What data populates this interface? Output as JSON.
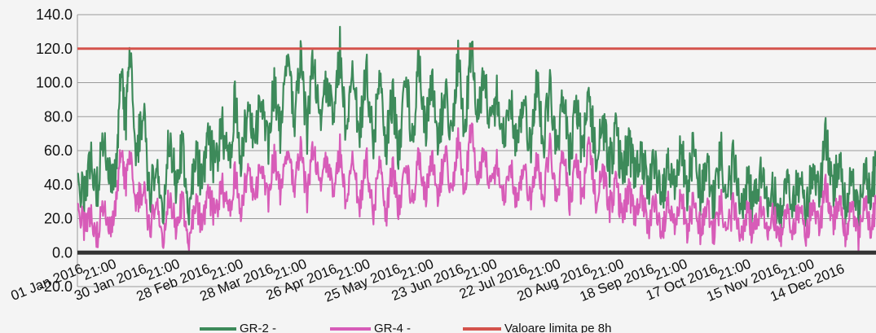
{
  "chart_data": {
    "type": "line",
    "ylim": [
      -20,
      140
    ],
    "y_ticks": [
      "140.0",
      "120.0",
      "100.0",
      "80.0",
      "60.0",
      "40.0",
      "20.0",
      "0.0",
      "-20.0"
    ],
    "x_range": [
      "2016-01-01",
      "2016-12-31"
    ],
    "x_major_ticks": [
      {
        "date": "2016-01-01",
        "label": "01 Jan 2016"
      },
      {
        "date": "2016-01-30",
        "label": "30 Jan 2016"
      },
      {
        "date": "2016-02-28",
        "label": "28 Feb 2016"
      },
      {
        "date": "2016-03-28",
        "label": "28 Mar 2016"
      },
      {
        "date": "2016-04-26",
        "label": "26 Apr 2016"
      },
      {
        "date": "2016-05-25",
        "label": "25 May 2016"
      },
      {
        "date": "2016-06-23",
        "label": "23 Jun 2016"
      },
      {
        "date": "2016-07-22",
        "label": "22 Jul 2016"
      },
      {
        "date": "2016-08-20",
        "label": "20 Aug 2016"
      },
      {
        "date": "2016-09-18",
        "label": "18 Sep 2016"
      },
      {
        "date": "2016-10-17",
        "label": "17 Oct 2016"
      },
      {
        "date": "2016-11-15",
        "label": "15 Nov 2016"
      },
      {
        "date": "2016-12-14",
        "label": "14 Dec 2016"
      }
    ],
    "x_minor_label": "21:00",
    "grid": true,
    "legend_position": "bottom",
    "colors": {
      "gr2": "#3d8a5a",
      "gr4": "#d75cb8",
      "limit": "#d4534c",
      "axis": "#333333"
    },
    "series": [
      {
        "name": "GR-2 -",
        "key": "gr2",
        "points": [
          [
            "2016-01-01",
            45
          ],
          [
            "2016-01-04",
            30
          ],
          [
            "2016-01-07",
            60
          ],
          [
            "2016-01-10",
            38
          ],
          [
            "2016-01-13",
            70
          ],
          [
            "2016-01-16",
            42
          ],
          [
            "2016-01-19",
            55
          ],
          [
            "2016-01-21",
            112
          ],
          [
            "2016-01-23",
            75
          ],
          [
            "2016-01-25",
            115
          ],
          [
            "2016-01-28",
            58
          ],
          [
            "2016-01-31",
            85
          ],
          [
            "2016-02-03",
            30
          ],
          [
            "2016-02-06",
            50
          ],
          [
            "2016-02-09",
            25
          ],
          [
            "2016-02-12",
            70
          ],
          [
            "2016-02-15",
            40
          ],
          [
            "2016-02-18",
            62
          ],
          [
            "2016-02-21",
            30
          ],
          [
            "2016-02-24",
            55
          ],
          [
            "2016-02-27",
            45
          ],
          [
            "2016-03-01",
            68
          ],
          [
            "2016-03-04",
            48
          ],
          [
            "2016-03-07",
            75
          ],
          [
            "2016-03-10",
            50
          ],
          [
            "2016-03-13",
            88
          ],
          [
            "2016-03-16",
            55
          ],
          [
            "2016-03-19",
            85
          ],
          [
            "2016-03-22",
            60
          ],
          [
            "2016-03-25",
            95
          ],
          [
            "2016-03-28",
            62
          ],
          [
            "2016-03-31",
            100
          ],
          [
            "2016-04-03",
            65
          ],
          [
            "2016-04-06",
            118
          ],
          [
            "2016-04-09",
            72
          ],
          [
            "2016-04-12",
            115
          ],
          [
            "2016-04-15",
            68
          ],
          [
            "2016-04-18",
            118
          ],
          [
            "2016-04-21",
            70
          ],
          [
            "2016-04-24",
            105
          ],
          [
            "2016-04-27",
            72
          ],
          [
            "2016-04-30",
            121
          ],
          [
            "2016-05-03",
            70
          ],
          [
            "2016-05-06",
            105
          ],
          [
            "2016-05-09",
            68
          ],
          [
            "2016-05-12",
            110
          ],
          [
            "2016-05-15",
            65
          ],
          [
            "2016-05-18",
            100
          ],
          [
            "2016-05-21",
            60
          ],
          [
            "2016-05-24",
            92
          ],
          [
            "2016-05-27",
            58
          ],
          [
            "2016-05-30",
            110
          ],
          [
            "2016-06-02",
            62
          ],
          [
            "2016-06-05",
            115
          ],
          [
            "2016-06-08",
            68
          ],
          [
            "2016-06-11",
            100
          ],
          [
            "2016-06-14",
            65
          ],
          [
            "2016-06-17",
            95
          ],
          [
            "2016-06-20",
            70
          ],
          [
            "2016-06-23",
            112
          ],
          [
            "2016-06-26",
            75
          ],
          [
            "2016-06-29",
            121
          ],
          [
            "2016-07-02",
            78
          ],
          [
            "2016-07-05",
            105
          ],
          [
            "2016-07-08",
            70
          ],
          [
            "2016-07-11",
            95
          ],
          [
            "2016-07-14",
            65
          ],
          [
            "2016-07-17",
            90
          ],
          [
            "2016-07-20",
            62
          ],
          [
            "2016-07-23",
            88
          ],
          [
            "2016-07-26",
            60
          ],
          [
            "2016-07-29",
            102
          ],
          [
            "2016-08-01",
            65
          ],
          [
            "2016-08-04",
            95
          ],
          [
            "2016-08-07",
            60
          ],
          [
            "2016-08-10",
            90
          ],
          [
            "2016-08-13",
            55
          ],
          [
            "2016-08-16",
            88
          ],
          [
            "2016-08-19",
            58
          ],
          [
            "2016-08-22",
            95
          ],
          [
            "2016-08-25",
            55
          ],
          [
            "2016-08-28",
            80
          ],
          [
            "2016-08-31",
            50
          ],
          [
            "2016-09-03",
            70
          ],
          [
            "2016-09-06",
            45
          ],
          [
            "2016-09-09",
            65
          ],
          [
            "2016-09-12",
            42
          ],
          [
            "2016-09-15",
            58
          ],
          [
            "2016-09-18",
            40
          ],
          [
            "2016-09-21",
            55
          ],
          [
            "2016-09-24",
            35
          ],
          [
            "2016-09-27",
            52
          ],
          [
            "2016-09-30",
            38
          ],
          [
            "2016-10-03",
            60
          ],
          [
            "2016-10-06",
            35
          ],
          [
            "2016-10-09",
            70
          ],
          [
            "2016-10-12",
            30
          ],
          [
            "2016-10-15",
            52
          ],
          [
            "2016-10-18",
            28
          ],
          [
            "2016-10-21",
            60
          ],
          [
            "2016-10-24",
            30
          ],
          [
            "2016-10-27",
            55
          ],
          [
            "2016-10-30",
            28
          ],
          [
            "2016-11-02",
            42
          ],
          [
            "2016-11-05",
            25
          ],
          [
            "2016-11-08",
            48
          ],
          [
            "2016-11-11",
            30
          ],
          [
            "2016-11-14",
            40
          ],
          [
            "2016-11-17",
            22
          ],
          [
            "2016-11-20",
            38
          ],
          [
            "2016-11-23",
            28
          ],
          [
            "2016-11-26",
            45
          ],
          [
            "2016-11-29",
            25
          ],
          [
            "2016-12-02",
            50
          ],
          [
            "2016-12-05",
            30
          ],
          [
            "2016-12-08",
            70
          ],
          [
            "2016-12-11",
            35
          ],
          [
            "2016-12-14",
            55
          ],
          [
            "2016-12-17",
            30
          ],
          [
            "2016-12-20",
            40
          ],
          [
            "2016-12-23",
            20
          ],
          [
            "2016-12-26",
            45
          ],
          [
            "2016-12-29",
            38
          ],
          [
            "2016-12-31",
            52
          ]
        ]
      },
      {
        "name": "GR-4 -",
        "key": "gr4",
        "points": [
          [
            "2016-01-01",
            28
          ],
          [
            "2016-01-04",
            15
          ],
          [
            "2016-01-07",
            25
          ],
          [
            "2016-01-10",
            10
          ],
          [
            "2016-01-13",
            30
          ],
          [
            "2016-01-16",
            12
          ],
          [
            "2016-01-19",
            35
          ],
          [
            "2016-01-21",
            62
          ],
          [
            "2016-01-23",
            40
          ],
          [
            "2016-01-25",
            55
          ],
          [
            "2016-01-28",
            30
          ],
          [
            "2016-01-31",
            38
          ],
          [
            "2016-02-03",
            12
          ],
          [
            "2016-02-06",
            30
          ],
          [
            "2016-02-09",
            8
          ],
          [
            "2016-02-12",
            35
          ],
          [
            "2016-02-15",
            15
          ],
          [
            "2016-02-18",
            30
          ],
          [
            "2016-02-21",
            10
          ],
          [
            "2016-02-24",
            28
          ],
          [
            "2016-02-27",
            18
          ],
          [
            "2016-03-01",
            35
          ],
          [
            "2016-03-04",
            20
          ],
          [
            "2016-03-07",
            40
          ],
          [
            "2016-03-10",
            22
          ],
          [
            "2016-03-13",
            45
          ],
          [
            "2016-03-16",
            25
          ],
          [
            "2016-03-19",
            50
          ],
          [
            "2016-03-22",
            28
          ],
          [
            "2016-03-25",
            55
          ],
          [
            "2016-03-28",
            30
          ],
          [
            "2016-03-31",
            58
          ],
          [
            "2016-04-03",
            32
          ],
          [
            "2016-04-06",
            60
          ],
          [
            "2016-04-09",
            35
          ],
          [
            "2016-04-12",
            62
          ],
          [
            "2016-04-15",
            30
          ],
          [
            "2016-04-18",
            65
          ],
          [
            "2016-04-21",
            35
          ],
          [
            "2016-04-24",
            58
          ],
          [
            "2016-04-27",
            30
          ],
          [
            "2016-04-30",
            62
          ],
          [
            "2016-05-03",
            28
          ],
          [
            "2016-05-06",
            55
          ],
          [
            "2016-05-09",
            25
          ],
          [
            "2016-05-12",
            58
          ],
          [
            "2016-05-15",
            22
          ],
          [
            "2016-05-18",
            52
          ],
          [
            "2016-05-21",
            20
          ],
          [
            "2016-05-24",
            50
          ],
          [
            "2016-05-27",
            25
          ],
          [
            "2016-05-30",
            55
          ],
          [
            "2016-06-02",
            28
          ],
          [
            "2016-06-05",
            58
          ],
          [
            "2016-06-08",
            30
          ],
          [
            "2016-06-11",
            55
          ],
          [
            "2016-06-14",
            32
          ],
          [
            "2016-06-17",
            60
          ],
          [
            "2016-06-20",
            35
          ],
          [
            "2016-06-23",
            65
          ],
          [
            "2016-06-26",
            38
          ],
          [
            "2016-06-29",
            75
          ],
          [
            "2016-07-02",
            40
          ],
          [
            "2016-07-05",
            60
          ],
          [
            "2016-07-08",
            35
          ],
          [
            "2016-07-11",
            55
          ],
          [
            "2016-07-14",
            30
          ],
          [
            "2016-07-17",
            52
          ],
          [
            "2016-07-20",
            28
          ],
          [
            "2016-07-23",
            50
          ],
          [
            "2016-07-26",
            30
          ],
          [
            "2016-07-29",
            55
          ],
          [
            "2016-08-01",
            32
          ],
          [
            "2016-08-04",
            62
          ],
          [
            "2016-08-07",
            30
          ],
          [
            "2016-08-10",
            58
          ],
          [
            "2016-08-13",
            28
          ],
          [
            "2016-08-16",
            55
          ],
          [
            "2016-08-19",
            30
          ],
          [
            "2016-08-22",
            68
          ],
          [
            "2016-08-25",
            28
          ],
          [
            "2016-08-28",
            52
          ],
          [
            "2016-08-31",
            25
          ],
          [
            "2016-09-03",
            40
          ],
          [
            "2016-09-06",
            20
          ],
          [
            "2016-09-09",
            38
          ],
          [
            "2016-09-12",
            18
          ],
          [
            "2016-09-15",
            35
          ],
          [
            "2016-09-18",
            15
          ],
          [
            "2016-09-21",
            32
          ],
          [
            "2016-09-24",
            12
          ],
          [
            "2016-09-27",
            30
          ],
          [
            "2016-09-30",
            15
          ],
          [
            "2016-10-03",
            32
          ],
          [
            "2016-10-06",
            12
          ],
          [
            "2016-10-09",
            35
          ],
          [
            "2016-10-12",
            10
          ],
          [
            "2016-10-15",
            28
          ],
          [
            "2016-10-18",
            10
          ],
          [
            "2016-10-21",
            30
          ],
          [
            "2016-10-24",
            12
          ],
          [
            "2016-10-27",
            28
          ],
          [
            "2016-10-30",
            10
          ],
          [
            "2016-11-02",
            25
          ],
          [
            "2016-11-05",
            10
          ],
          [
            "2016-11-08",
            28
          ],
          [
            "2016-11-11",
            12
          ],
          [
            "2016-11-14",
            25
          ],
          [
            "2016-11-17",
            10
          ],
          [
            "2016-11-20",
            22
          ],
          [
            "2016-11-23",
            12
          ],
          [
            "2016-11-26",
            28
          ],
          [
            "2016-11-29",
            10
          ],
          [
            "2016-12-02",
            30
          ],
          [
            "2016-12-05",
            12
          ],
          [
            "2016-12-08",
            40
          ],
          [
            "2016-12-11",
            15
          ],
          [
            "2016-12-14",
            32
          ],
          [
            "2016-12-17",
            12
          ],
          [
            "2016-12-20",
            25
          ],
          [
            "2016-12-23",
            8
          ],
          [
            "2016-12-26",
            28
          ],
          [
            "2016-12-29",
            15
          ],
          [
            "2016-12-31",
            30
          ]
        ]
      },
      {
        "name": "Valoare limita pe 8h",
        "key": "limit",
        "constant": 120
      }
    ]
  }
}
